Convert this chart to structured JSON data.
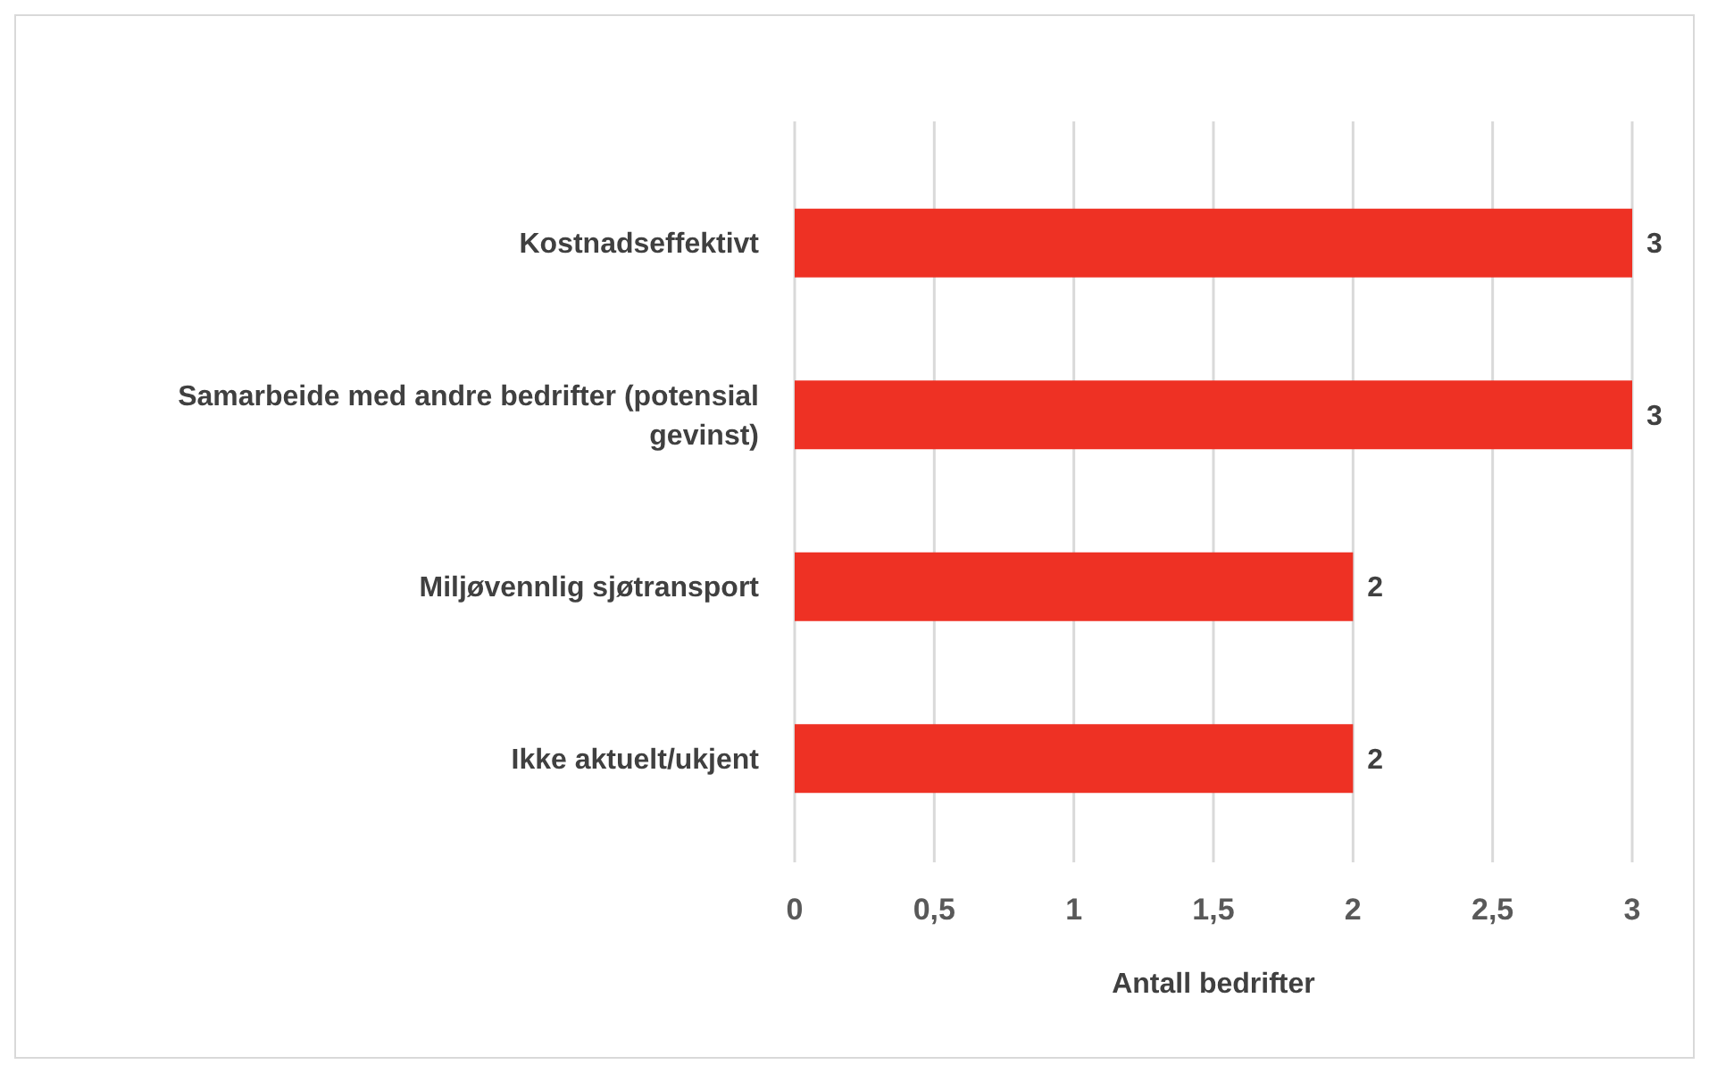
{
  "chart_data": {
    "type": "bar",
    "orientation": "horizontal",
    "categories": [
      "Kostnadseffektivt",
      "Samarbeide med andre bedrifter (potensial gevinst)",
      "Miljøvennlig sjøtransport",
      "Ikke aktuelt/ukjent"
    ],
    "values": [
      3,
      3,
      2,
      2
    ],
    "color": "#ee3124",
    "xlabel": "Antall bedrifter",
    "xlim": [
      0,
      3
    ],
    "xticks": [
      0,
      {
        "value": 0.5,
        "label": "0,5"
      },
      1,
      {
        "value": 1.5,
        "label": "1,5"
      },
      2,
      {
        "value": 2.5,
        "label": "2,5"
      },
      3
    ],
    "grid": "x",
    "data_labels": true
  }
}
